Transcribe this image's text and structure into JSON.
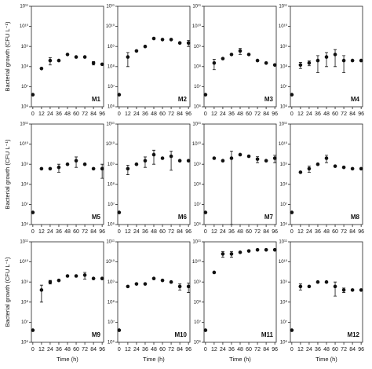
{
  "chart_data": [
    {
      "type": "scatter",
      "title": "M1",
      "ylabel": "Bacterial growth (CFU L⁻¹)",
      "x": [
        0,
        12,
        24,
        36,
        48,
        60,
        72,
        84,
        96
      ],
      "values": [
        4000000,
        80000000,
        200000000,
        200000000,
        400000000,
        300000000,
        300000000,
        150000000,
        130000000
      ],
      "errors": [
        0,
        0,
        80000000,
        0,
        0,
        0,
        0,
        30000000,
        0
      ],
      "color": "#111111",
      "log_scale": true,
      "xlim": [
        -2,
        98
      ],
      "xticks": [
        0,
        12,
        24,
        36,
        48,
        60,
        72,
        84,
        96
      ],
      "ylim": [
        1000000,
        100000000000
      ],
      "yticks": [
        {
          "value": 1000000,
          "label": "10⁶"
        },
        {
          "value": 10000000,
          "label": "10⁷"
        },
        {
          "value": 100000000,
          "label": "10⁸"
        },
        {
          "value": 1000000000,
          "label": "10⁹"
        },
        {
          "value": 10000000000,
          "label": "10¹⁰"
        },
        {
          "value": 100000000000,
          "label": "10¹¹"
        }
      ]
    },
    {
      "type": "scatter",
      "title": "M2",
      "x": [
        0,
        12,
        24,
        36,
        48,
        60,
        72,
        84,
        96
      ],
      "values": [
        4000000,
        300000000,
        600000000,
        1000000000,
        2500000000,
        2200000000,
        2200000000,
        1500000000,
        1500000000
      ],
      "errors": [
        0,
        200000000,
        0,
        0,
        0,
        0,
        0,
        0,
        500000000
      ],
      "color": "#111111",
      "log_scale": true,
      "xlim": [
        -2,
        98
      ],
      "xticks": [
        0,
        12,
        24,
        36,
        48,
        60,
        72,
        84,
        96
      ],
      "ylim": [
        1000000,
        100000000000
      ],
      "yticks": [
        {
          "value": 1000000,
          "label": "10⁶"
        },
        {
          "value": 10000000,
          "label": "10⁷"
        },
        {
          "value": 100000000,
          "label": "10⁸"
        },
        {
          "value": 1000000000,
          "label": "10⁹"
        },
        {
          "value": 10000000000,
          "label": "10¹⁰"
        },
        {
          "value": 100000000000,
          "label": "10¹¹"
        }
      ]
    },
    {
      "type": "scatter",
      "title": "M3",
      "x": [
        0,
        12,
        24,
        36,
        48,
        60,
        72,
        84,
        96
      ],
      "values": [
        4000000,
        150000000,
        250000000,
        400000000,
        600000000,
        400000000,
        200000000,
        150000000,
        120000000
      ],
      "errors": [
        0,
        80000000,
        0,
        0,
        200000000,
        0,
        0,
        0,
        0
      ],
      "color": "#111111",
      "log_scale": true,
      "xlim": [
        -2,
        98
      ],
      "xticks": [
        0,
        12,
        24,
        36,
        48,
        60,
        72,
        84,
        96
      ],
      "ylim": [
        1000000,
        100000000000
      ],
      "yticks": [
        {
          "value": 1000000,
          "label": "10⁶"
        },
        {
          "value": 10000000,
          "label": "10⁷"
        },
        {
          "value": 100000000,
          "label": "10⁸"
        },
        {
          "value": 1000000000,
          "label": "10⁹"
        },
        {
          "value": 10000000000,
          "label": "10¹⁰"
        },
        {
          "value": 100000000000,
          "label": "10¹¹"
        }
      ]
    },
    {
      "type": "scatter",
      "title": "M4",
      "x": [
        0,
        12,
        24,
        36,
        48,
        60,
        72,
        84,
        96
      ],
      "values": [
        4000000,
        120000000,
        150000000,
        200000000,
        300000000,
        400000000,
        200000000,
        200000000,
        200000000
      ],
      "errors": [
        0,
        40000000,
        40000000,
        150000000,
        200000000,
        300000000,
        150000000,
        0,
        0
      ],
      "color": "#111111",
      "log_scale": true,
      "xlim": [
        -2,
        98
      ],
      "xticks": [
        0,
        12,
        24,
        36,
        48,
        60,
        72,
        84,
        96
      ],
      "ylim": [
        1000000,
        100000000000
      ],
      "yticks": [
        {
          "value": 1000000,
          "label": "10⁶"
        },
        {
          "value": 10000000,
          "label": "10⁷"
        },
        {
          "value": 100000000,
          "label": "10⁸"
        },
        {
          "value": 1000000000,
          "label": "10⁹"
        },
        {
          "value": 10000000000,
          "label": "10¹⁰"
        },
        {
          "value": 100000000000,
          "label": "10¹¹"
        }
      ]
    },
    {
      "type": "scatter",
      "title": "M5",
      "ylabel": "Bacterial growth (CFU L⁻¹)",
      "x": [
        0,
        12,
        24,
        36,
        48,
        60,
        72,
        84,
        96
      ],
      "values": [
        4000000,
        600000000,
        600000000,
        700000000,
        1000000000,
        1500000000,
        1000000000,
        600000000,
        600000000
      ],
      "errors": [
        0,
        0,
        0,
        300000000,
        0,
        800000000,
        0,
        0,
        400000000
      ],
      "color": "#111111",
      "log_scale": true,
      "xlim": [
        -2,
        98
      ],
      "xticks": [
        0,
        12,
        24,
        36,
        48,
        60,
        72,
        84,
        96
      ],
      "ylim": [
        1000000,
        100000000000
      ],
      "yticks": [
        {
          "value": 1000000,
          "label": "10⁶"
        },
        {
          "value": 10000000,
          "label": "10⁷"
        },
        {
          "value": 100000000,
          "label": "10⁸"
        },
        {
          "value": 1000000000,
          "label": "10⁹"
        },
        {
          "value": 10000000000,
          "label": "10¹⁰"
        },
        {
          "value": 100000000000,
          "label": "10¹¹"
        }
      ]
    },
    {
      "type": "scatter",
      "title": "M6",
      "x": [
        0,
        12,
        24,
        36,
        48,
        60,
        72,
        84,
        96
      ],
      "values": [
        4000000,
        600000000,
        1000000000,
        1500000000,
        3000000000,
        2000000000,
        2500000000,
        1500000000,
        1500000000
      ],
      "errors": [
        0,
        300000000,
        0,
        800000000,
        2000000000,
        0,
        2000000000,
        0,
        0
      ],
      "color": "#111111",
      "log_scale": true,
      "xlim": [
        -2,
        98
      ],
      "xticks": [
        0,
        12,
        24,
        36,
        48,
        60,
        72,
        84,
        96
      ],
      "ylim": [
        1000000,
        100000000000
      ],
      "yticks": [
        {
          "value": 1000000,
          "label": "10⁶"
        },
        {
          "value": 10000000,
          "label": "10⁷"
        },
        {
          "value": 100000000,
          "label": "10⁸"
        },
        {
          "value": 1000000000,
          "label": "10⁹"
        },
        {
          "value": 10000000000,
          "label": "10¹⁰"
        },
        {
          "value": 100000000000,
          "label": "10¹¹"
        }
      ]
    },
    {
      "type": "scatter",
      "title": "M7",
      "x": [
        0,
        12,
        24,
        36,
        48,
        60,
        72,
        84,
        96
      ],
      "values": [
        4000000,
        2000000000,
        1500000000,
        2000000000,
        3000000000,
        2500000000,
        1800000000,
        1500000000,
        2000000000
      ],
      "errors": [
        0,
        0,
        0,
        2500000000,
        0,
        0,
        600000000,
        0,
        800000000
      ],
      "color": "#111111",
      "log_scale": true,
      "xlim": [
        -2,
        98
      ],
      "xticks": [
        0,
        12,
        24,
        36,
        48,
        60,
        72,
        84,
        96
      ],
      "ylim": [
        1000000,
        100000000000
      ],
      "yticks": [
        {
          "value": 1000000,
          "label": "10⁶"
        },
        {
          "value": 10000000,
          "label": "10⁷"
        },
        {
          "value": 100000000,
          "label": "10⁸"
        },
        {
          "value": 1000000000,
          "label": "10⁹"
        },
        {
          "value": 10000000000,
          "label": "10¹⁰"
        },
        {
          "value": 100000000000,
          "label": "10¹¹"
        }
      ]
    },
    {
      "type": "scatter",
      "title": "M8",
      "x": [
        0,
        12,
        24,
        36,
        48,
        60,
        72,
        84,
        96
      ],
      "values": [
        4000000,
        400000000,
        600000000,
        1000000000,
        2000000000,
        800000000,
        700000000,
        600000000,
        600000000
      ],
      "errors": [
        0,
        0,
        200000000,
        0,
        800000000,
        0,
        0,
        0,
        0
      ],
      "color": "#111111",
      "log_scale": true,
      "xlim": [
        -2,
        98
      ],
      "xticks": [
        0,
        12,
        24,
        36,
        48,
        60,
        72,
        84,
        96
      ],
      "ylim": [
        1000000,
        100000000000
      ],
      "yticks": [
        {
          "value": 1000000,
          "label": "10⁶"
        },
        {
          "value": 10000000,
          "label": "10⁷"
        },
        {
          "value": 100000000,
          "label": "10⁸"
        },
        {
          "value": 1000000000,
          "label": "10⁹"
        },
        {
          "value": 10000000000,
          "label": "10¹⁰"
        },
        {
          "value": 100000000000,
          "label": "10¹¹"
        }
      ]
    },
    {
      "type": "scatter",
      "title": "M9",
      "ylabel": "Bacterial growth (CFU L⁻¹)",
      "xlabel": "Time (h)",
      "x": [
        0,
        12,
        24,
        36,
        48,
        60,
        72,
        84,
        96
      ],
      "values": [
        4000000,
        400000000,
        1000000000,
        1200000000,
        2000000000,
        2000000000,
        2200000000,
        1500000000,
        1500000000
      ],
      "errors": [
        0,
        300000000,
        200000000,
        0,
        0,
        0,
        800000000,
        0,
        0
      ],
      "color": "#111111",
      "log_scale": true,
      "xlim": [
        -2,
        98
      ],
      "xticks": [
        0,
        12,
        24,
        36,
        48,
        60,
        72,
        84,
        96
      ],
      "ylim": [
        1000000,
        100000000000
      ],
      "yticks": [
        {
          "value": 1000000,
          "label": "10⁶"
        },
        {
          "value": 10000000,
          "label": "10⁷"
        },
        {
          "value": 100000000,
          "label": "10⁸"
        },
        {
          "value": 1000000000,
          "label": "10⁹"
        },
        {
          "value": 10000000000,
          "label": "10¹⁰"
        },
        {
          "value": 100000000000,
          "label": "10¹¹"
        }
      ]
    },
    {
      "type": "scatter",
      "title": "M10",
      "xlabel": "Time (h)",
      "x": [
        0,
        12,
        24,
        36,
        48,
        60,
        72,
        84,
        96
      ],
      "values": [
        4000000,
        600000000,
        800000000,
        800000000,
        1500000000,
        1200000000,
        1000000000,
        600000000,
        600000000
      ],
      "errors": [
        0,
        0,
        0,
        0,
        0,
        0,
        0,
        200000000,
        300000000
      ],
      "color": "#111111",
      "log_scale": true,
      "xlim": [
        -2,
        98
      ],
      "xticks": [
        0,
        12,
        24,
        36,
        48,
        60,
        72,
        84,
        96
      ],
      "ylim": [
        1000000,
        100000000000
      ],
      "yticks": [
        {
          "value": 1000000,
          "label": "10⁶"
        },
        {
          "value": 10000000,
          "label": "10⁷"
        },
        {
          "value": 100000000,
          "label": "10⁸"
        },
        {
          "value": 1000000000,
          "label": "10⁹"
        },
        {
          "value": 10000000000,
          "label": "10¹⁰"
        },
        {
          "value": 100000000000,
          "label": "10¹¹"
        }
      ]
    },
    {
      "type": "scatter",
      "title": "M11",
      "xlabel": "Time (h)",
      "x": [
        0,
        12,
        24,
        36,
        48,
        60,
        72,
        84,
        96
      ],
      "values": [
        4000000,
        3000000000,
        25000000000,
        25000000000,
        30000000000,
        35000000000,
        40000000000,
        40000000000,
        40000000000
      ],
      "errors": [
        0,
        0,
        8000000000,
        8000000000,
        0,
        0,
        0,
        0,
        0
      ],
      "color": "#111111",
      "log_scale": true,
      "xlim": [
        -2,
        98
      ],
      "xticks": [
        0,
        12,
        24,
        36,
        48,
        60,
        72,
        84,
        96
      ],
      "ylim": [
        1000000,
        100000000000
      ],
      "yticks": [
        {
          "value": 1000000,
          "label": "10⁶"
        },
        {
          "value": 10000000,
          "label": "10⁷"
        },
        {
          "value": 100000000,
          "label": "10⁸"
        },
        {
          "value": 1000000000,
          "label": "10⁹"
        },
        {
          "value": 10000000000,
          "label": "10¹⁰"
        },
        {
          "value": 100000000000,
          "label": "10¹¹"
        }
      ]
    },
    {
      "type": "scatter",
      "title": "M12",
      "xlabel": "Time (h)",
      "x": [
        0,
        12,
        24,
        36,
        48,
        60,
        72,
        84,
        96
      ],
      "values": [
        4000000,
        600000000,
        600000000,
        1000000000,
        1000000000,
        600000000,
        400000000,
        400000000,
        400000000
      ],
      "errors": [
        0,
        200000000,
        0,
        0,
        0,
        400000000,
        100000000,
        0,
        0
      ],
      "color": "#111111",
      "log_scale": true,
      "xlim": [
        -2,
        98
      ],
      "xticks": [
        0,
        12,
        24,
        36,
        48,
        60,
        72,
        84,
        96
      ],
      "ylim": [
        1000000,
        100000000000
      ],
      "yticks": [
        {
          "value": 1000000,
          "label": "10⁶"
        },
        {
          "value": 10000000,
          "label": "10⁷"
        },
        {
          "value": 100000000,
          "label": "10⁸"
        },
        {
          "value": 1000000000,
          "label": "10⁹"
        },
        {
          "value": 10000000000,
          "label": "10¹⁰"
        },
        {
          "value": 100000000000,
          "label": "10¹¹"
        }
      ]
    }
  ]
}
